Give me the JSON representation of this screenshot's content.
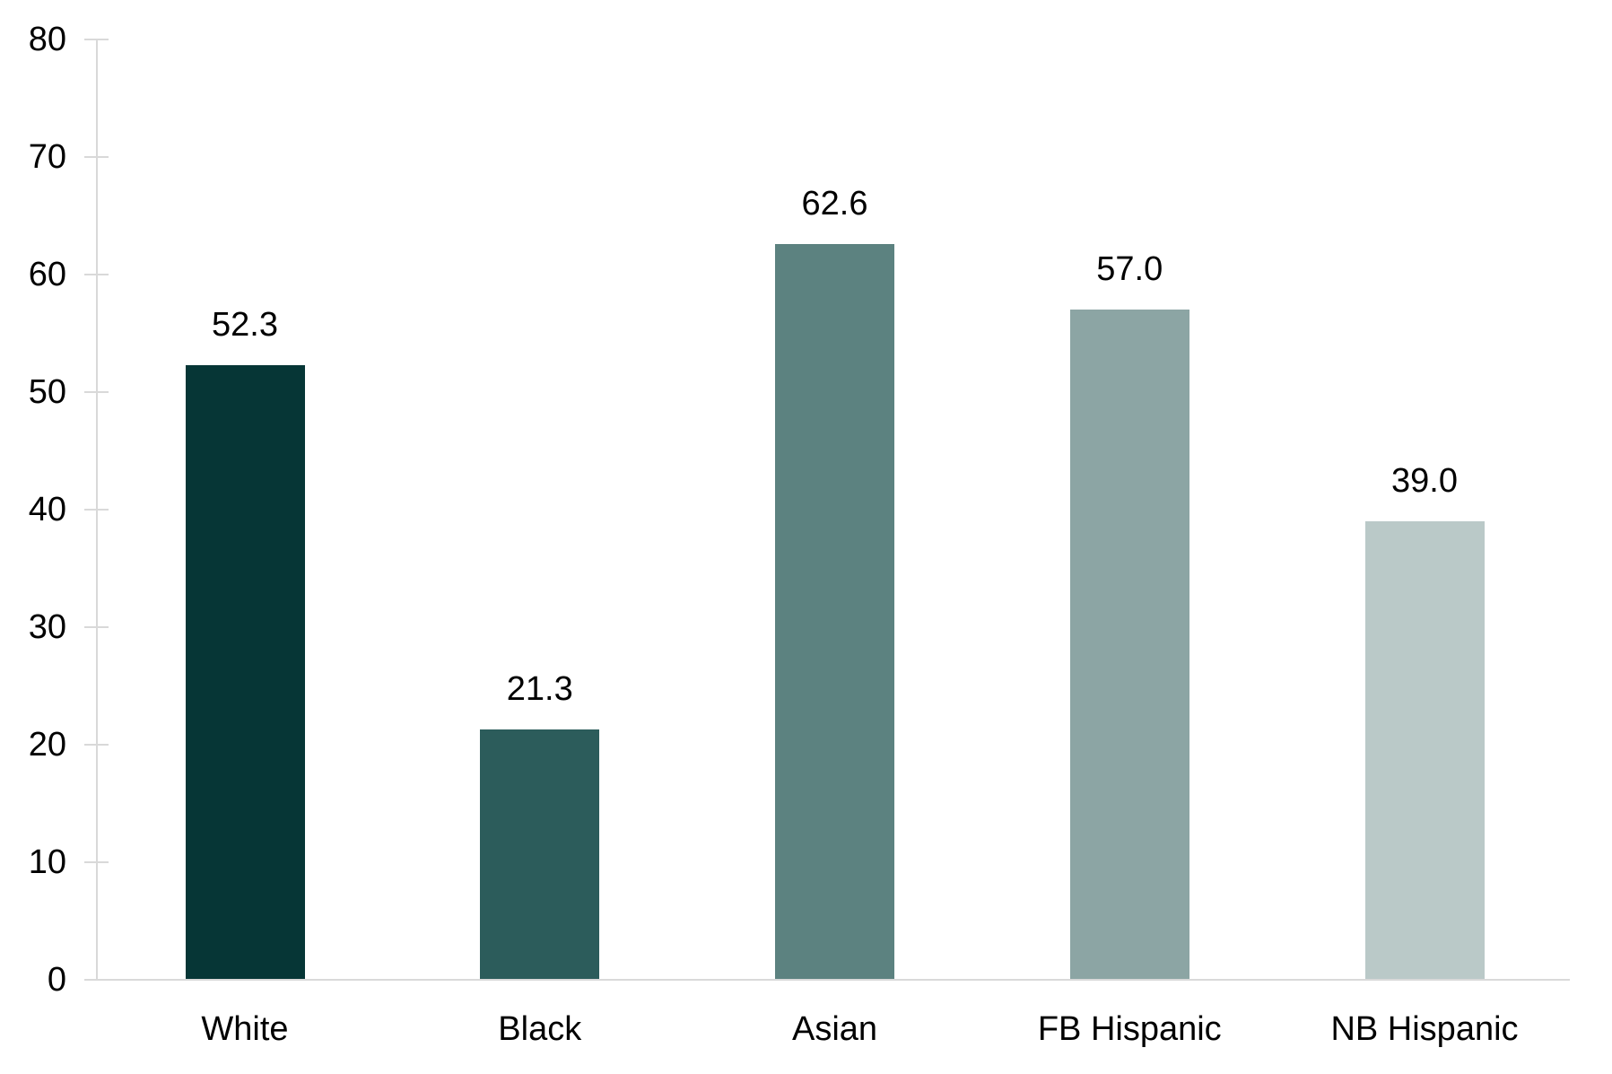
{
  "chart_data": {
    "type": "bar",
    "categories": [
      "White",
      "Black",
      "Asian",
      "FB Hispanic",
      "NB Hispanic"
    ],
    "values": [
      52.3,
      21.3,
      62.6,
      57.0,
      39.0
    ],
    "value_labels": [
      "52.3",
      "21.3",
      "62.6",
      "57.0",
      "39.0"
    ],
    "bar_colors": [
      "#063636",
      "#2c5c5b",
      "#5c8280",
      "#8ca5a4",
      "#bac9c8"
    ],
    "ylim": [
      0,
      80
    ],
    "yticks": [
      0,
      10,
      20,
      30,
      40,
      50,
      60,
      70,
      80
    ],
    "ytick_labels": [
      "0",
      "10",
      "20",
      "30",
      "40",
      "50",
      "60",
      "70",
      "80"
    ],
    "grid": false,
    "legend": "none",
    "data_labels": true,
    "axis_color": "#d9d9d9",
    "text_color": "#000000",
    "background": "#ffffff"
  }
}
